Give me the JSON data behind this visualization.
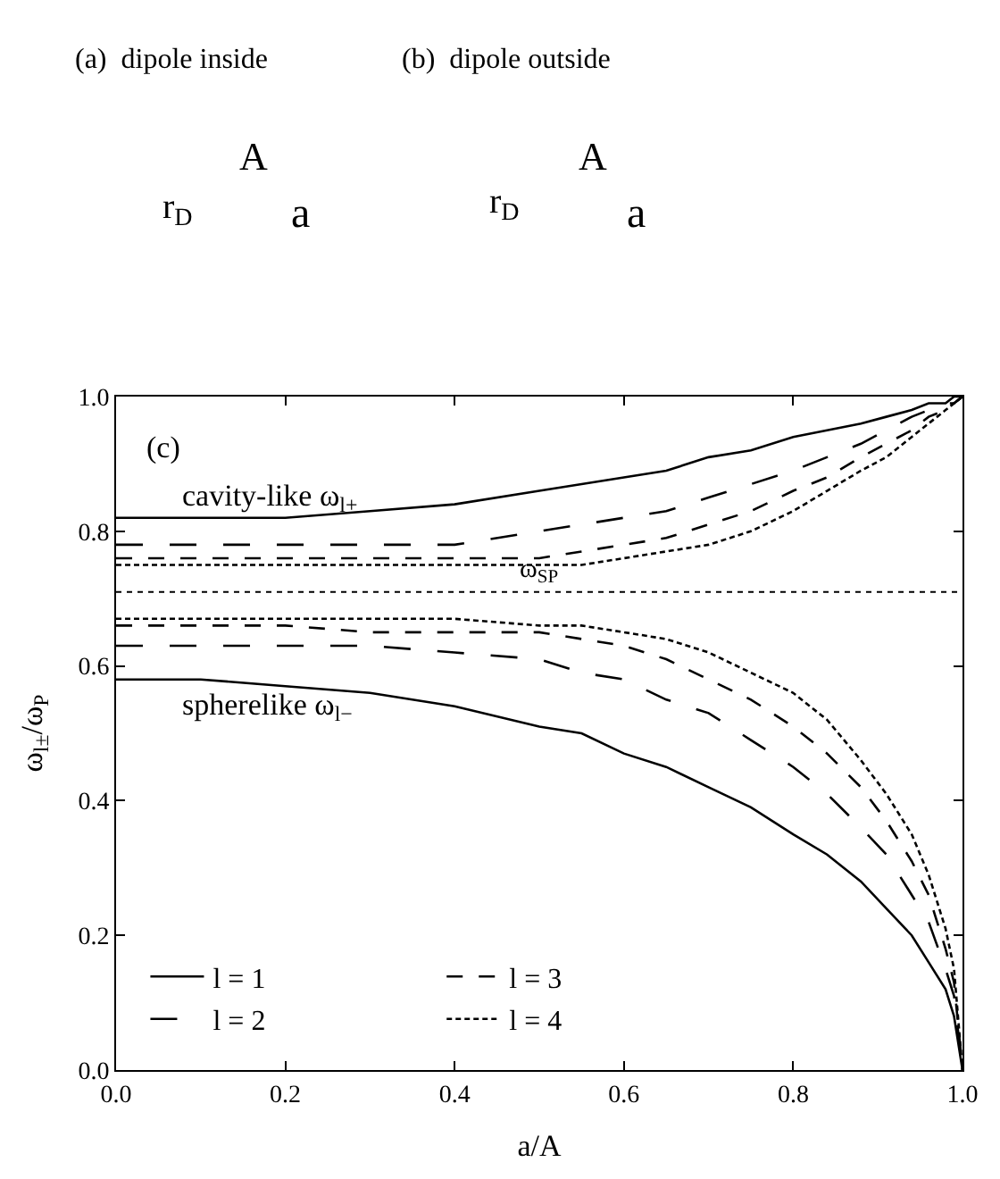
{
  "chart_data": {
    "type": "line",
    "xlabel": "a/A",
    "ylabel": "ω$_{l±}$/ω$_{P}$",
    "x": [
      0,
      0.1,
      0.2,
      0.3,
      0.4,
      0.5,
      0.55,
      0.6,
      0.65,
      0.7,
      0.75,
      0.8,
      0.84,
      0.88,
      0.91,
      0.94,
      0.96,
      0.98,
      0.99,
      1
    ],
    "series": [
      {
        "name": "l = 1",
        "color": "#000000",
        "line_style": "solid",
        "values": [
          0.82,
          0.82,
          0.82,
          0.83,
          0.84,
          0.86,
          0.87,
          0.88,
          0.89,
          0.91,
          0.92,
          0.94,
          0.95,
          0.96,
          0.97,
          0.98,
          0.99,
          0.99,
          1.0,
          1.0
        ]
      },
      {
        "color": "#000000",
        "line_style": "solid",
        "values": [
          0.58,
          0.58,
          0.57,
          0.56,
          0.54,
          0.51,
          0.5,
          0.47,
          0.45,
          0.42,
          0.39,
          0.35,
          0.32,
          0.28,
          0.24,
          0.2,
          0.16,
          0.12,
          0.08,
          0.0
        ]
      },
      {
        "name": "l = 2",
        "color": "#000000",
        "line_style": "dashed",
        "values": [
          0.78,
          0.78,
          0.78,
          0.78,
          0.78,
          0.8,
          0.81,
          0.82,
          0.83,
          0.85,
          0.87,
          0.89,
          0.91,
          0.93,
          0.95,
          0.97,
          0.98,
          0.99,
          0.99,
          1.0
        ]
      },
      {
        "color": "#000000",
        "line_style": "dashed",
        "values": [
          0.63,
          0.63,
          0.63,
          0.63,
          0.62,
          0.61,
          0.59,
          0.58,
          0.55,
          0.53,
          0.49,
          0.45,
          0.41,
          0.36,
          0.32,
          0.26,
          0.22,
          0.15,
          0.11,
          0.0
        ]
      },
      {
        "name": "l = 3",
        "color": "#000000",
        "line_style": "dashed",
        "values": [
          0.76,
          0.76,
          0.76,
          0.76,
          0.76,
          0.76,
          0.77,
          0.78,
          0.79,
          0.81,
          0.83,
          0.86,
          0.88,
          0.91,
          0.93,
          0.95,
          0.97,
          0.98,
          0.99,
          1.0
        ]
      },
      {
        "color": "#000000",
        "line_style": "dashed",
        "values": [
          0.66,
          0.66,
          0.66,
          0.65,
          0.65,
          0.65,
          0.64,
          0.63,
          0.61,
          0.58,
          0.55,
          0.51,
          0.47,
          0.42,
          0.37,
          0.31,
          0.26,
          0.18,
          0.13,
          0.0
        ]
      },
      {
        "name": "l = 4",
        "color": "#000000",
        "line_style": "dotted",
        "values": [
          0.75,
          0.75,
          0.75,
          0.75,
          0.75,
          0.75,
          0.75,
          0.76,
          0.77,
          0.78,
          0.8,
          0.83,
          0.86,
          0.89,
          0.91,
          0.94,
          0.96,
          0.98,
          0.99,
          1.0
        ]
      },
      {
        "color": "#000000",
        "line_style": "dotted",
        "values": [
          0.67,
          0.67,
          0.67,
          0.67,
          0.67,
          0.66,
          0.66,
          0.65,
          0.64,
          0.62,
          0.59,
          0.56,
          0.52,
          0.46,
          0.41,
          0.35,
          0.29,
          0.21,
          0.15,
          0.0
        ]
      }
    ],
    "xlim": [
      0.0,
      1.0
    ],
    "xticks": [
      {
        "value": 0,
        "label": "0.0"
      },
      {
        "value": 0.2,
        "label": "0.2"
      },
      {
        "value": 0.4,
        "label": "0.4"
      },
      {
        "value": 0.6,
        "label": "0.6"
      },
      {
        "value": 0.8,
        "label": "0.8"
      },
      {
        "value": 1,
        "label": "1.0"
      }
    ],
    "ylim": [
      0.0,
      1.0
    ],
    "yticks": [
      {
        "value": 0,
        "label": "0.0"
      },
      {
        "value": 0.2,
        "label": "0.2"
      },
      {
        "value": 0.4,
        "label": "0.4"
      },
      {
        "value": 0.6,
        "label": "0.6"
      },
      {
        "value": 0.8,
        "label": "0.8"
      },
      {
        "value": 1,
        "label": "1.0"
      }
    ],
    "ref_lines": [
      {
        "axis": "y",
        "value": 0.71,
        "label": "ω$_{SP}$",
        "color": "#000000",
        "line_style": "dotted"
      }
    ],
    "annotations": [
      "(a)  dipole inside",
      "A",
      "a",
      "r$_{D}$",
      "(b)  dipole outside",
      "A",
      "a",
      "r$_{D}$",
      "(c)",
      "cavity-like ω$_{l+}$",
      "spherelike ω$_{l−}$"
    ],
    "legend": "bottom left"
  }
}
